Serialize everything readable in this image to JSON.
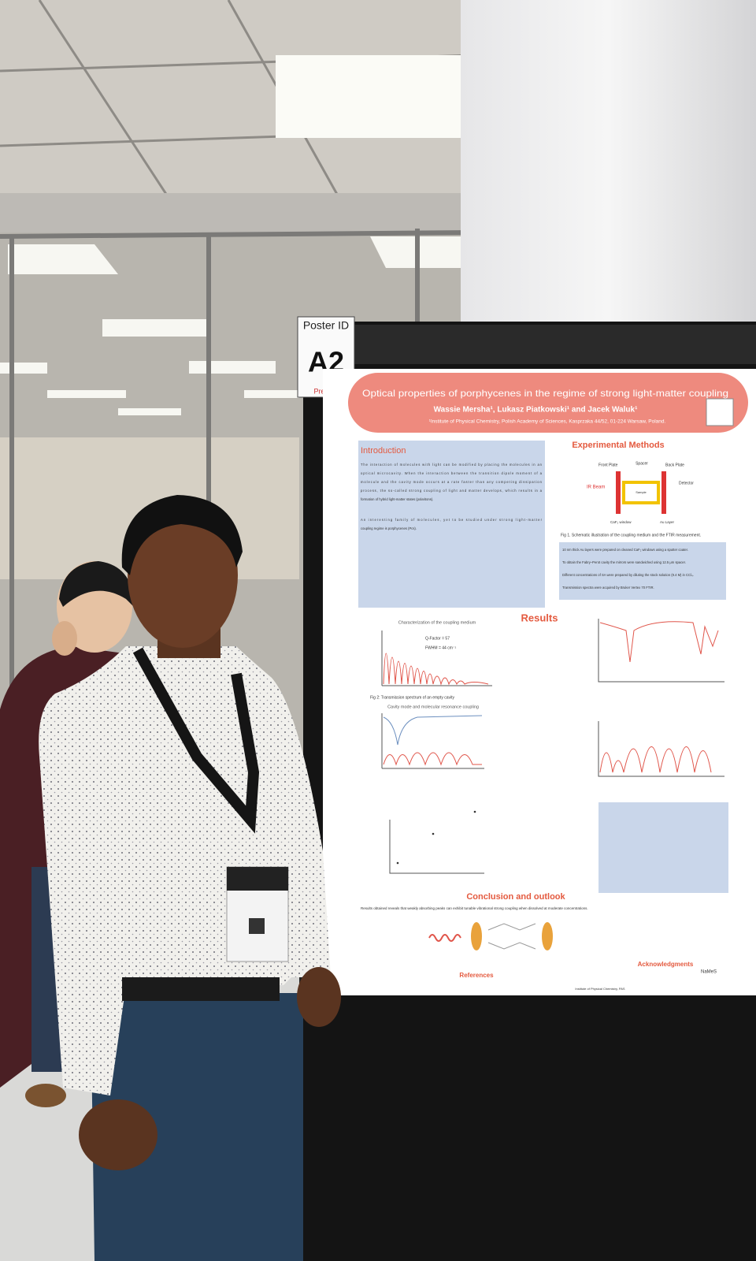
{
  "poster_id": {
    "label": "Poster ID",
    "code": "A2",
    "brand": "Prem"
  },
  "poster": {
    "title": "Optical properties of porphycenes in the regime of strong light-matter coupling",
    "authors": "Wassie Mersha¹, Lukasz Piatkowski¹ and Jacek Waluk¹",
    "affiliation": "¹Institute of Physical Chemistry, Polish Academy of Sciences, Kasprzaka 44/52, 01-224 Warsaw, Poland.",
    "sections": {
      "introduction": "Introduction",
      "methods": "Experimental Methods",
      "results": "Results",
      "conclusion": "Conclusion and outlook",
      "references": "References",
      "acknowledgments": "Acknowledgments"
    },
    "intro_text": [
      "The interaction of molecules with light can be modified by placing the molecules in an",
      "optical microcavity. When the interaction between the transition dipole moment of a",
      "molecule and the cavity mode occurs at a rate faster than any competing dissipation",
      "process, the so-called strong coupling of light and matter develops, which results in a",
      "formation of hybrid light-matter states (polaritons).",
      "An interesting family of molecules, yet to be studied under strong light-matter",
      "coupling regime is porphycenes (Pcs)."
    ],
    "diagram_labels": [
      "Front Plate",
      "Spacer",
      "Back Plate",
      "IR Beam",
      "Sample",
      "Detector",
      "CaF₂ window",
      "Au Layer"
    ],
    "fig1_caption": "Fig 1. Schematic illustration of the coupling medium and the FTIR measurement.",
    "method_bullets": [
      "10 nm thick Au layers were prepared on cleaned CaF₂ windows using a sputter coater.",
      "To obtain the Fabry–Perot cavity the mirrors were sandwiched using 12.5 μm spacer.",
      "Different concentrations of SA were prepared by diluting the stock solution (9.4 M) in CCl₄.",
      "Transmission spectra were acquired by Bruker Vertex 70 FTIR."
    ],
    "chart_titles": [
      "Characterization of the coupling medium",
      "Cavity mode and molecular resonance coupling"
    ],
    "fig2_caption": "Fig 2: Transmission spectrum of an empty cavity",
    "chart_annotations": [
      "Q-Factor = 57",
      "FWHM = 44 cm⁻¹"
    ],
    "conclusion_text": "Results obtained reveals that weakly absorbing peaks can exhibit tunable vibrational strong coupling when dissolved at moderate concentrations.",
    "acknowledgment_orgs": [
      "Institute of Physical Chemistry, PAS",
      "NaMeS"
    ]
  }
}
